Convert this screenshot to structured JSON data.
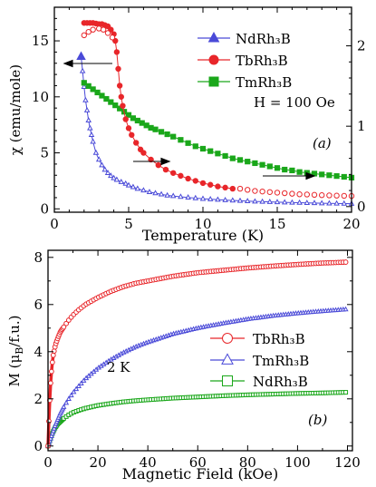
{
  "colors": {
    "red": "#e8262a",
    "blue": "#4a4ad8",
    "green": "#1aa71a",
    "axis": "#000000"
  },
  "chart_data": [
    {
      "type": "line",
      "panel_label": "(a)",
      "xlabel": "Temperature (K)",
      "ylabel": "χ (emu/mole)",
      "xlim": [
        0,
        20
      ],
      "ylim_left": [
        -0.3,
        18
      ],
      "ylim_right": [
        -0.07,
        2.48
      ],
      "xticks": [
        "0",
        "5",
        "10",
        "15",
        "20"
      ],
      "yticks_left": [
        "0",
        "5",
        "10",
        "15"
      ],
      "yticks_right": [
        "0",
        "1",
        "2"
      ],
      "annotation": "H = 100 Oe",
      "legend_position": "top-right",
      "series": [
        {
          "name": "NdRh₃B",
          "color": "#4a4ad8",
          "marker": "triangle",
          "axis": "left",
          "x": [
            1.8,
            1.9,
            2.0,
            2.1,
            2.2,
            2.3,
            2.4,
            2.5,
            2.6,
            2.8,
            3.0,
            3.2,
            3.4,
            3.6,
            3.8,
            4.0,
            4.2,
            4.5,
            4.8,
            5.0,
            5.3,
            5.6,
            6.0,
            6.4,
            6.8,
            7.2,
            7.6,
            8.0,
            8.5,
            9.0,
            9.5,
            10,
            10.5,
            11,
            11.5,
            12,
            12.5,
            13,
            13.5,
            14,
            14.5,
            15,
            15.5,
            16,
            16.5,
            17,
            17.5,
            18,
            18.5,
            19,
            19.5,
            20
          ],
          "y": [
            13.6,
            12.3,
            10.9,
            9.7,
            8.8,
            7.9,
            7.2,
            6.6,
            6.0,
            5.0,
            4.4,
            3.9,
            3.5,
            3.2,
            2.95,
            2.75,
            2.6,
            2.4,
            2.25,
            2.1,
            1.95,
            1.8,
            1.65,
            1.5,
            1.4,
            1.3,
            1.2,
            1.15,
            1.08,
            1.02,
            0.96,
            0.9,
            0.86,
            0.82,
            0.78,
            0.75,
            0.72,
            0.69,
            0.66,
            0.64,
            0.62,
            0.6,
            0.58,
            0.56,
            0.55,
            0.53,
            0.52,
            0.5,
            0.49,
            0.48,
            0.47,
            0.46
          ]
        },
        {
          "name": "TbRh₃B",
          "color": "#e8262a",
          "marker": "circle",
          "axis": "left",
          "note": "filled circles cooling branch, open circles second branch",
          "x_filled": [
            2.0,
            2.2,
            2.4,
            2.6,
            2.8,
            3.0,
            3.2,
            3.4,
            3.6,
            3.8,
            4.0,
            4.1,
            4.2,
            4.3,
            4.4,
            4.5,
            4.6,
            4.8,
            5.0,
            5.2,
            5.5,
            5.8,
            6.0,
            6.5,
            7.0,
            7.5,
            8.0,
            8.5,
            9.0,
            9.5,
            10,
            10.5,
            11,
            11.5,
            12
          ],
          "y_filled": [
            16.6,
            16.6,
            16.6,
            16.6,
            16.55,
            16.5,
            16.5,
            16.4,
            16.3,
            16.0,
            15.6,
            15.0,
            14.0,
            12.5,
            11.0,
            10.0,
            9.2,
            8.0,
            7.2,
            6.6,
            5.9,
            5.3,
            5.0,
            4.4,
            3.9,
            3.5,
            3.2,
            2.95,
            2.7,
            2.5,
            2.3,
            2.15,
            2.0,
            1.9,
            1.8
          ],
          "x_open": [
            2.0,
            2.3,
            2.6,
            3.0,
            3.3,
            3.6,
            3.9,
            12.5,
            13,
            13.5,
            14,
            14.5,
            15,
            15.5,
            16,
            16.5,
            17,
            17.5,
            18,
            18.5,
            19,
            19.5,
            20
          ],
          "y_open": [
            15.5,
            15.8,
            16.0,
            16.1,
            16.0,
            15.7,
            15.3,
            1.8,
            1.7,
            1.6,
            1.55,
            1.5,
            1.45,
            1.4,
            1.35,
            1.3,
            1.28,
            1.25,
            1.22,
            1.2,
            1.18,
            1.16,
            1.15
          ]
        },
        {
          "name": "TmRh₃B",
          "color": "#1aa71a",
          "marker": "square",
          "axis": "right",
          "x": [
            2.0,
            2.3,
            2.6,
            2.9,
            3.2,
            3.5,
            3.8,
            4.1,
            4.4,
            4.7,
            5.0,
            5.3,
            5.6,
            5.9,
            6.2,
            6.5,
            6.8,
            7.2,
            7.6,
            8.0,
            8.5,
            9.0,
            9.5,
            10,
            10.5,
            11,
            11.5,
            12,
            12.5,
            13,
            13.5,
            14,
            14.5,
            15,
            15.5,
            16,
            16.5,
            17,
            17.5,
            18,
            18.5,
            19,
            19.5,
            20
          ],
          "y": [
            1.54,
            1.5,
            1.46,
            1.42,
            1.38,
            1.34,
            1.3,
            1.26,
            1.22,
            1.18,
            1.14,
            1.1,
            1.07,
            1.04,
            1.01,
            0.98,
            0.96,
            0.93,
            0.9,
            0.87,
            0.83,
            0.79,
            0.75,
            0.72,
            0.69,
            0.66,
            0.63,
            0.6,
            0.58,
            0.56,
            0.54,
            0.52,
            0.5,
            0.48,
            0.46,
            0.45,
            0.43,
            0.42,
            0.41,
            0.4,
            0.39,
            0.38,
            0.37,
            0.36
          ]
        }
      ]
    },
    {
      "type": "line",
      "panel_label": "(b)",
      "xlabel": "Magnetic Field (kOe)",
      "ylabel": "M (μB/f.u.)",
      "xlim": [
        0,
        122
      ],
      "ylim": [
        -0.2,
        8.3
      ],
      "xticks": [
        "0",
        "20",
        "40",
        "60",
        "80",
        "100",
        "120"
      ],
      "yticks": [
        "0",
        "2",
        "4",
        "6",
        "8"
      ],
      "annotation": "2 K",
      "legend_position": "center-right",
      "series": [
        {
          "name": "TbRh₃B",
          "color": "#e8262a",
          "marker": "open-circle",
          "x": [
            0,
            0.5,
            1,
            1.5,
            2,
            3,
            4,
            5,
            6,
            8,
            10,
            12,
            15,
            20,
            25,
            30,
            35,
            40,
            50,
            60,
            70,
            80,
            90,
            100,
            110,
            120
          ],
          "y": [
            0,
            1.5,
            2.6,
            3.3,
            3.8,
            4.3,
            4.6,
            4.85,
            5.0,
            5.3,
            5.55,
            5.75,
            6.0,
            6.3,
            6.55,
            6.75,
            6.9,
            7.0,
            7.2,
            7.35,
            7.45,
            7.55,
            7.63,
            7.7,
            7.76,
            7.8
          ]
        },
        {
          "name": "TmRh₃B",
          "color": "#4a4ad8",
          "marker": "open-triangle",
          "x": [
            0,
            1,
            2,
            3,
            4,
            5,
            6,
            8,
            10,
            12,
            15,
            20,
            25,
            30,
            35,
            40,
            50,
            60,
            70,
            80,
            90,
            100,
            110,
            120
          ],
          "y": [
            0,
            0.3,
            0.6,
            0.9,
            1.15,
            1.4,
            1.6,
            1.95,
            2.25,
            2.5,
            2.85,
            3.3,
            3.65,
            3.95,
            4.2,
            4.4,
            4.75,
            5.0,
            5.2,
            5.38,
            5.52,
            5.63,
            5.72,
            5.8
          ]
        },
        {
          "name": "NdRh₃B",
          "color": "#1aa71a",
          "marker": "open-square",
          "x": [
            0,
            1,
            2,
            3,
            4,
            5,
            6,
            8,
            10,
            12,
            15,
            20,
            25,
            30,
            35,
            40,
            50,
            60,
            70,
            80,
            90,
            100,
            110,
            120
          ],
          "y": [
            0,
            0.35,
            0.6,
            0.8,
            0.95,
            1.05,
            1.15,
            1.3,
            1.42,
            1.5,
            1.6,
            1.72,
            1.8,
            1.87,
            1.92,
            1.96,
            2.03,
            2.08,
            2.13,
            2.17,
            2.2,
            2.23,
            2.25,
            2.28
          ]
        }
      ]
    }
  ]
}
